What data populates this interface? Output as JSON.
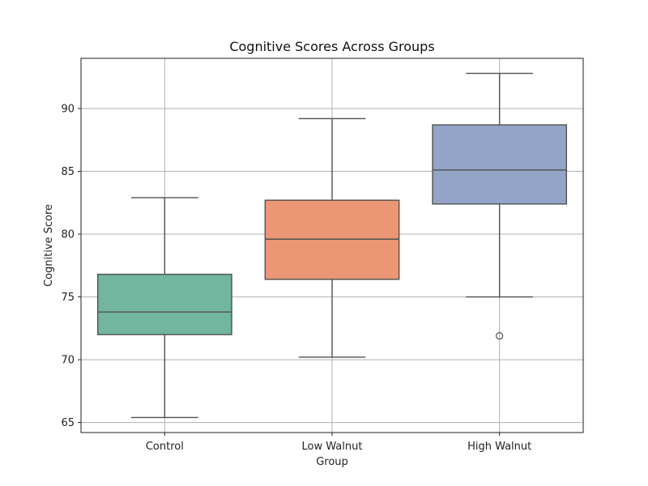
{
  "chart_data": {
    "type": "box",
    "title": "Cognitive Scores Across Groups",
    "xlabel": "Group",
    "ylabel": "Cognitive Score",
    "ylim": [
      64.2,
      94.0
    ],
    "yticks": [
      65,
      70,
      75,
      80,
      85,
      90
    ],
    "grid": true,
    "categories": [
      "Control",
      "Low Walnut",
      "High Walnut"
    ],
    "boxes": [
      {
        "name": "Control",
        "whisker_low": 65.4,
        "q1": 72.0,
        "median": 73.8,
        "q3": 76.8,
        "whisker_high": 82.9,
        "outliers": [],
        "color": "#72b6a0"
      },
      {
        "name": "Low Walnut",
        "whisker_low": 70.2,
        "q1": 76.4,
        "median": 79.6,
        "q3": 82.7,
        "whisker_high": 89.2,
        "outliers": [],
        "color": "#eb9674"
      },
      {
        "name": "High Walnut",
        "whisker_low": 75.0,
        "q1": 82.4,
        "median": 85.1,
        "q3": 88.7,
        "whisker_high": 92.8,
        "outliers": [
          71.9
        ],
        "color": "#93a4c7"
      }
    ]
  }
}
